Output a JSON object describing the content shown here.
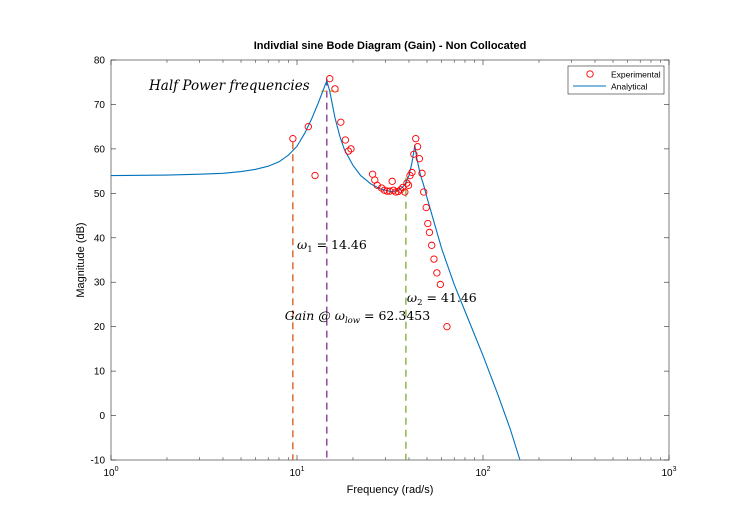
{
  "chart_data": {
    "type": "scatter",
    "title": "Indivdial sine Bode Diagram (Gain) - Non Collocated",
    "xlabel": "Frequency  (rad/s)",
    "ylabel": "Magnitude (dB)",
    "xscale": "log",
    "xlim": [
      1,
      1000
    ],
    "ylim": [
      -10,
      80
    ],
    "x_ticks": [
      1,
      10,
      100,
      1000
    ],
    "x_tick_labels": [
      {
        "base": "10",
        "exp": "0"
      },
      {
        "base": "10",
        "exp": "1"
      },
      {
        "base": "10",
        "exp": "2"
      },
      {
        "base": "10",
        "exp": "3"
      }
    ],
    "y_ticks": [
      "-10",
      "0",
      "10",
      "20",
      "30",
      "40",
      "50",
      "60",
      "70",
      "80"
    ],
    "grid": false,
    "legend_position": "top-right",
    "series": [
      {
        "name": "Experimental",
        "style": "markers",
        "color": "#ff0000",
        "points": [
          [
            9.5,
            62.3
          ],
          [
            11.5,
            65.0
          ],
          [
            12.5,
            54.0
          ],
          [
            15.0,
            75.8
          ],
          [
            16.0,
            73.5
          ],
          [
            17.2,
            66.0
          ],
          [
            18.2,
            62.0
          ],
          [
            18.9,
            59.5
          ],
          [
            19.5,
            60.0
          ],
          [
            25.5,
            54.3
          ],
          [
            26.2,
            53.0
          ],
          [
            27.0,
            51.8
          ],
          [
            28.5,
            51.2
          ],
          [
            29.5,
            50.7
          ],
          [
            30.5,
            50.5
          ],
          [
            31.5,
            50.5
          ],
          [
            32.5,
            52.7
          ],
          [
            33.0,
            50.7
          ],
          [
            34.0,
            50.3
          ],
          [
            35.0,
            50.4
          ],
          [
            36.0,
            50.8
          ],
          [
            37.0,
            51.3
          ],
          [
            38.0,
            50.3
          ],
          [
            39.0,
            52.3
          ],
          [
            39.8,
            51.8
          ],
          [
            40.5,
            54.0
          ],
          [
            41.5,
            54.7
          ],
          [
            42.5,
            58.8
          ],
          [
            43.5,
            62.3
          ],
          [
            44.5,
            60.5
          ],
          [
            45.5,
            57.8
          ],
          [
            47.0,
            54.5
          ],
          [
            48.0,
            50.3
          ],
          [
            49.5,
            46.8
          ],
          [
            50.5,
            43.2
          ],
          [
            51.5,
            41.2
          ],
          [
            53.0,
            38.3
          ],
          [
            54.5,
            35.2
          ],
          [
            56.5,
            32.1
          ],
          [
            59.0,
            29.5
          ],
          [
            64.0,
            20.0
          ]
        ]
      },
      {
        "name": "Analytical",
        "style": "line",
        "color": "#0072bd",
        "points": [
          [
            1,
            54.0
          ],
          [
            2,
            54.1
          ],
          [
            3,
            54.3
          ],
          [
            4,
            54.5
          ],
          [
            5,
            54.9
          ],
          [
            6,
            55.4
          ],
          [
            7,
            56.1
          ],
          [
            8,
            57.1
          ],
          [
            9,
            58.6
          ],
          [
            10,
            60.6
          ],
          [
            11,
            63.5
          ],
          [
            12,
            66.8
          ],
          [
            13,
            70.3
          ],
          [
            14,
            73.8
          ],
          [
            14.46,
            75.3
          ],
          [
            15,
            73.0
          ],
          [
            16,
            67.0
          ],
          [
            17,
            62.8
          ],
          [
            18,
            59.8
          ],
          [
            20,
            56.3
          ],
          [
            22,
            54.0
          ],
          [
            25,
            52.1
          ],
          [
            28,
            51.0
          ],
          [
            32,
            50.4
          ],
          [
            35,
            50.6
          ],
          [
            38,
            51.9
          ],
          [
            40,
            54.0
          ],
          [
            41.46,
            56.8
          ],
          [
            43,
            60.8
          ],
          [
            44,
            58.0
          ],
          [
            46,
            54.3
          ],
          [
            48,
            51.8
          ],
          [
            50,
            49.0
          ],
          [
            55,
            43.0
          ],
          [
            60,
            37.5
          ],
          [
            70,
            29.5
          ],
          [
            80,
            23.5
          ],
          [
            100,
            13.5
          ],
          [
            120,
            4.8
          ],
          [
            140,
            -3.0
          ],
          [
            158,
            -10.0
          ]
        ]
      }
    ],
    "reference_lines": [
      {
        "x": 9.5,
        "y_top": 61.5,
        "color": "#d95319"
      },
      {
        "x": 14.46,
        "y_top": 75.8,
        "color": "#7e2f8e"
      },
      {
        "x": 38.5,
        "y_top": 53.5,
        "color": "#77ac30"
      }
    ],
    "half_power_line": {
      "x": [
        13.5,
        16.8
      ],
      "y": 73.0,
      "color": "#edb120"
    },
    "annotations": {
      "half_power": {
        "text": "Half Power frequencies",
        "x": 1.6,
        "y": 73.3
      },
      "omega1": {
        "prefix": "ω",
        "sub": "1",
        "suffix": " =  14.46",
        "x": 10.0,
        "y": 37.5
      },
      "omega2": {
        "prefix": "ω",
        "sub": "2",
        "suffix": " =  41.46",
        "x": 39.0,
        "y": 25.5
      },
      "gain": {
        "prefix": "Gain @ ω",
        "sub": "low",
        "suffix": " =  62.3453",
        "x": 8.6,
        "y": 21.5
      }
    }
  }
}
